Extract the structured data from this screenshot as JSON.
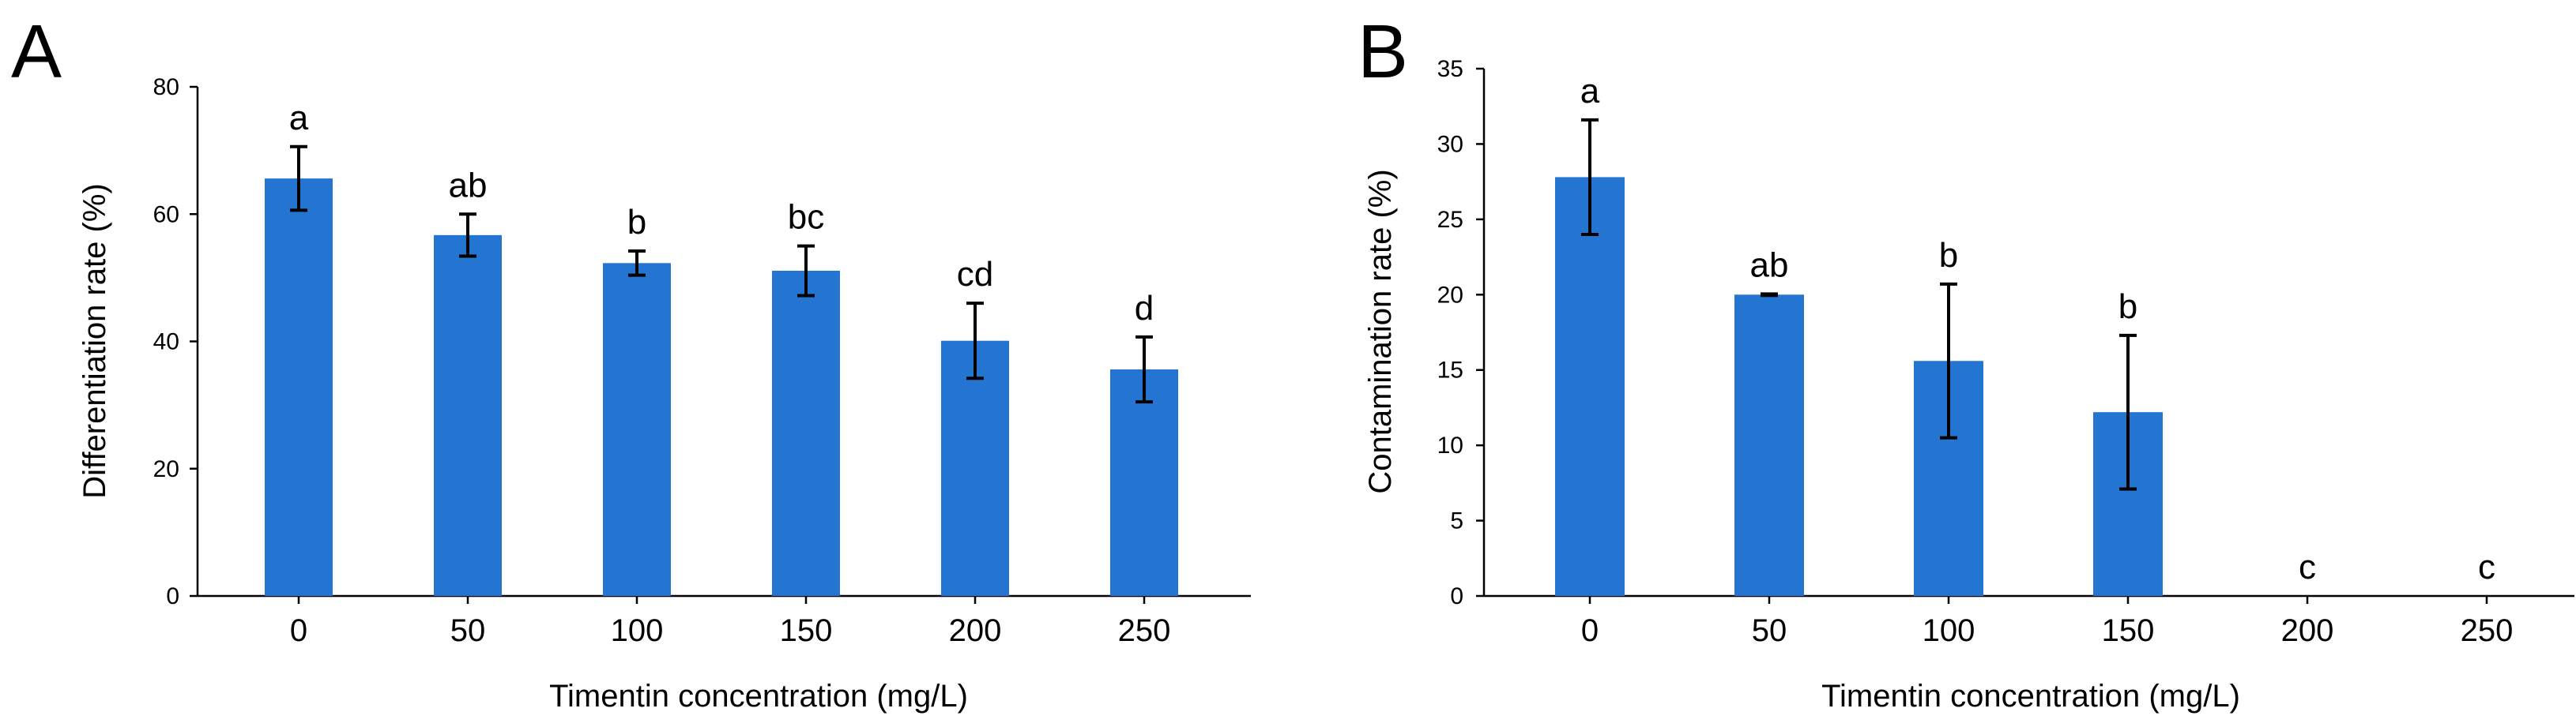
{
  "chart_data": [
    {
      "panel": "A",
      "type": "bar",
      "title": "",
      "xlabel": "Timentin concentration (mg/L)",
      "ylabel": "Differentiation rate (%)",
      "categories": [
        "0",
        "50",
        "100",
        "150",
        "200",
        "250"
      ],
      "values": [
        65.6,
        56.7,
        52.3,
        51.1,
        40.1,
        35.6
      ],
      "error": [
        5.0,
        3.3,
        1.9,
        3.9,
        5.9,
        5.1
      ],
      "significance": [
        "a",
        "ab",
        "b",
        "bc",
        "cd",
        "d"
      ],
      "ylim": [
        0,
        80
      ],
      "yticks": [
        0,
        20,
        40,
        60,
        80
      ],
      "bar_color": "#2474D1",
      "grid": false
    },
    {
      "panel": "B",
      "type": "bar",
      "title": "",
      "xlabel": "Timentin concentration (mg/L)",
      "ylabel": "Contamination rate (%)",
      "categories": [
        "0",
        "50",
        "100",
        "150",
        "200",
        "250"
      ],
      "values": [
        27.8,
        20.0,
        15.6,
        12.2,
        0,
        0
      ],
      "error": [
        3.8,
        0.05,
        5.1,
        5.1,
        0,
        0
      ],
      "significance": [
        "a",
        "ab",
        "b",
        "b",
        "c",
        "c"
      ],
      "ylim": [
        0,
        35
      ],
      "yticks": [
        0,
        5,
        10,
        15,
        20,
        25,
        30,
        35
      ],
      "bar_color": "#2474D1",
      "grid": false
    }
  ]
}
